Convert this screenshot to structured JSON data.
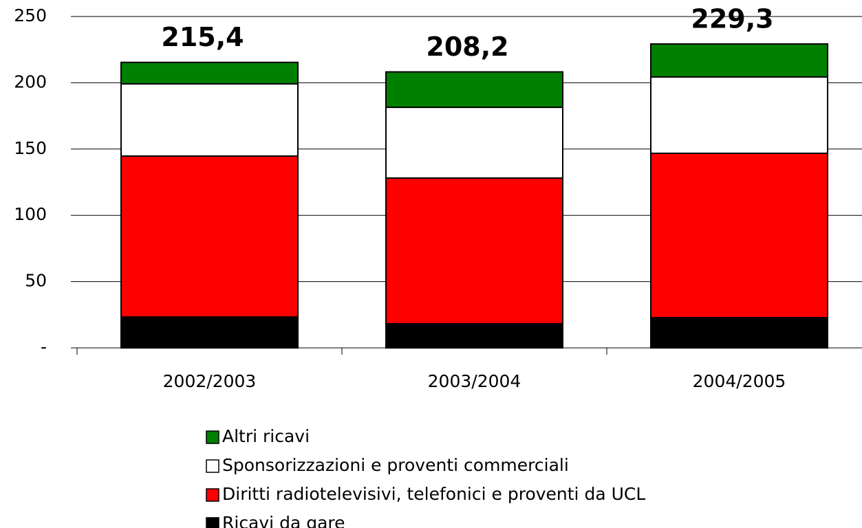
{
  "chart_data": {
    "type": "stacked-bar",
    "categories": [
      "2002/2003",
      "2003/2004",
      "2004/2005"
    ],
    "series": [
      {
        "name": "Ricavi da gare",
        "color": "#000000",
        "values": [
          23.3,
          18.2,
          22.8
        ]
      },
      {
        "name": "Diritti radiotelevisivi, telefonici e proventi da UCL",
        "color": "#ff0000",
        "values": [
          121.4,
          109.9,
          124.0
        ]
      },
      {
        "name": "Sponsorizzazioni e proventi commerciali",
        "color": "#ffffff",
        "values": [
          54.5,
          53.4,
          57.6
        ]
      },
      {
        "name": "Altri ricavi",
        "color": "#008000",
        "values": [
          16.2,
          26.7,
          24.9
        ]
      }
    ],
    "totals": [
      215.4,
      208.2,
      229.3
    ],
    "total_labels": [
      "215,4",
      "208,2",
      "229,3"
    ],
    "ylim": [
      0,
      250
    ],
    "yticks": [
      {
        "value": 0,
        "label": "-"
      },
      50,
      100,
      150,
      200,
      250
    ],
    "grid": true
  }
}
